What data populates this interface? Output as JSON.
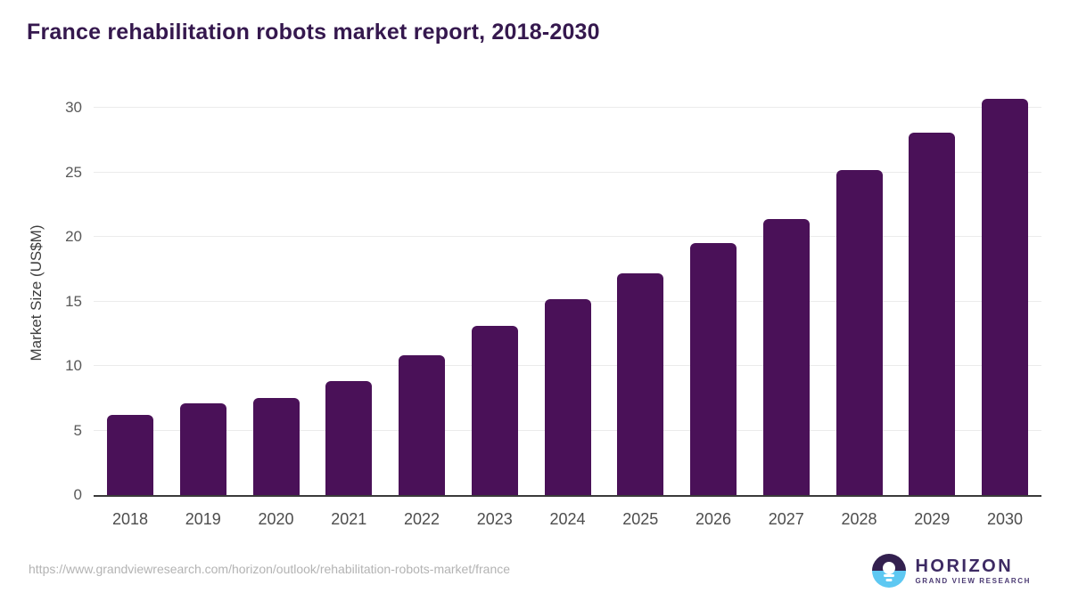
{
  "title": "France rehabilitation robots market report, 2018-2030",
  "chart_data": {
    "type": "bar",
    "title": "France rehabilitation robots market report, 2018-2030",
    "categories": [
      "2018",
      "2019",
      "2020",
      "2021",
      "2022",
      "2023",
      "2024",
      "2025",
      "2026",
      "2027",
      "2028",
      "2029",
      "2030"
    ],
    "values": [
      6.2,
      7.1,
      7.5,
      8.8,
      10.8,
      13.1,
      15.2,
      17.2,
      19.5,
      21.4,
      25.2,
      28.1,
      30.7
    ],
    "xlabel": "",
    "ylabel": "Market Size (US$M)",
    "ylim": [
      0,
      31
    ],
    "yticks": [
      0,
      5,
      10,
      15,
      20,
      25,
      30
    ],
    "grid": "horizontal",
    "legend": "none",
    "bar_color": "#4a1158"
  },
  "footer": {
    "source_url": "https://www.grandviewresearch.com/horizon/outlook/rehabilitation-robots-market/france",
    "logo_name": "HORIZON",
    "logo_subtitle": "GRAND VIEW RESEARCH"
  },
  "colors": {
    "title": "#35184e",
    "bar": "#4a1158",
    "axis_line": "#3a3a3a",
    "gridline": "#ebebeb",
    "tick_label": "#595959",
    "x_label": "#4d4d4d",
    "url_text": "#b3b3b3",
    "logo_purple": "#3d2a63",
    "logo_blue": "#5ec8f2"
  }
}
